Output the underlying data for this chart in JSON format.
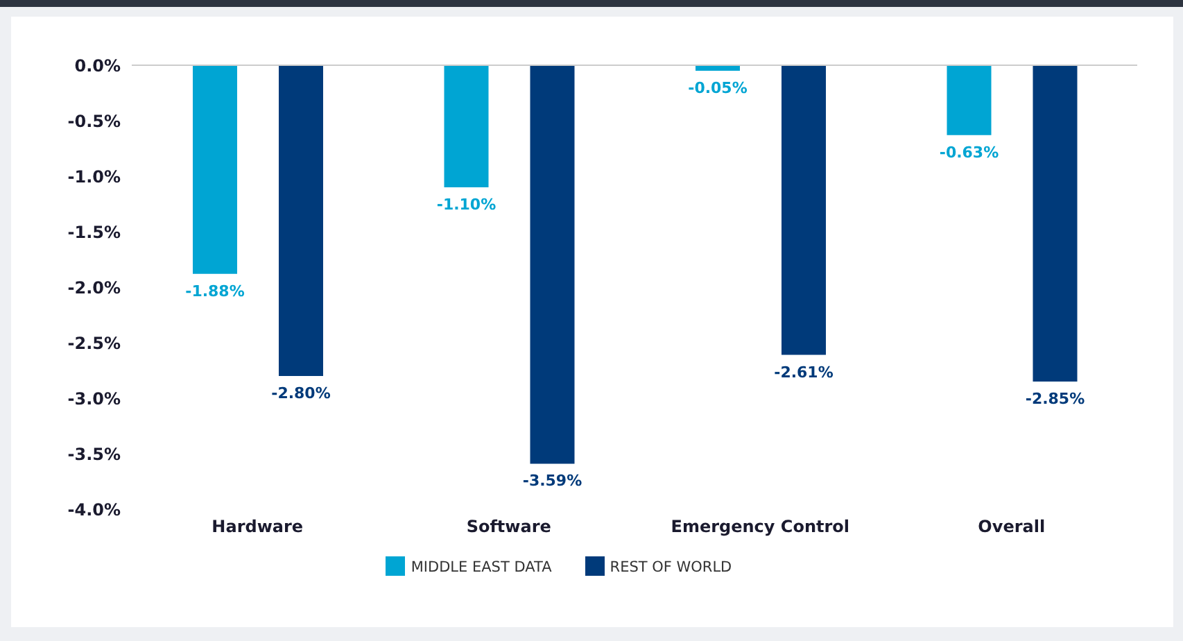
{
  "chart_data": {
    "type": "bar",
    "categories": [
      "Hardware",
      "Software",
      "Emergency Control",
      "Overall"
    ],
    "series": [
      {
        "name": "MIDDLE EAST DATA",
        "color": "#00a5d3",
        "values": [
          -1.88,
          -1.1,
          -0.05,
          -0.63
        ],
        "value_labels": [
          "-1.88%",
          "-1.10%",
          "-0.05%",
          "-0.63%"
        ]
      },
      {
        "name": "REST OF WORLD",
        "color": "#003a7a",
        "values": [
          -2.8,
          -3.59,
          -2.61,
          -2.85
        ],
        "value_labels": [
          "-2.80%",
          "-3.59%",
          "-2.61%",
          "-2.85%"
        ]
      }
    ],
    "ylim": [
      -4,
      0
    ],
    "yticks": [
      {
        "value": 0,
        "label": "0.0%"
      },
      {
        "value": -0.5,
        "label": "-0.5%"
      },
      {
        "value": -1,
        "label": "-1.0%"
      },
      {
        "value": -1.5,
        "label": "-1.5%"
      },
      {
        "value": -2,
        "label": "-2.0%"
      },
      {
        "value": -2.5,
        "label": "-2.5%"
      },
      {
        "value": -3,
        "label": "-3.0%"
      },
      {
        "value": -3.5,
        "label": "-3.5%"
      },
      {
        "value": -4,
        "label": "-4.0%"
      }
    ],
    "legend": "bottom",
    "ref_lines": [
      {
        "axis": "y",
        "value": 0,
        "label": null,
        "color": "#cccccc"
      }
    ]
  }
}
